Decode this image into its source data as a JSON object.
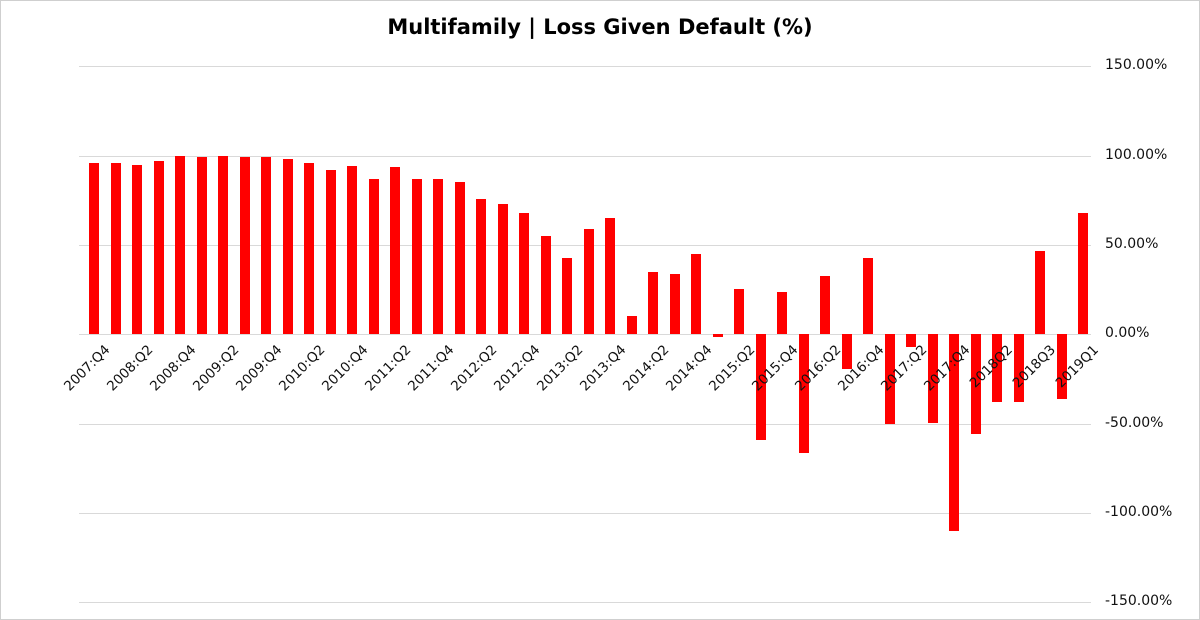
{
  "chart_data": {
    "type": "bar",
    "title": "Multifamily | Loss Given Default (%)",
    "bar_color": "#ff0000",
    "gridline_color": "#d9d9d9",
    "legend": false,
    "grid": true,
    "y_axis_side": "right",
    "ylim": [
      -150,
      150
    ],
    "y_tick_labels": [
      "150.00%",
      "100.00%",
      "50.00%",
      "0.00%",
      "-50.00%",
      "-100.00%",
      "-150.00%"
    ],
    "y_tick_values": [
      150,
      100,
      50,
      0,
      -50,
      -100,
      -150
    ],
    "x_tick_labels": [
      "2007:Q4",
      "2008:Q2",
      "2008:Q4",
      "2009:Q2",
      "2009:Q4",
      "2010:Q2",
      "2010:Q4",
      "2011:Q2",
      "2011:Q4",
      "2012:Q2",
      "2012:Q4",
      "2013:Q2",
      "2013:Q4",
      "2014:Q2",
      "2014:Q4",
      "2015:Q2",
      "2015:Q4",
      "2016:Q2",
      "2016:Q4",
      "2017:Q2",
      "2017:Q4",
      "2018Q2",
      "2018Q3",
      "2019Q1"
    ],
    "x_tick_interval": 2,
    "x_label_rotation_deg": 45,
    "values_unit": "percent",
    "values": [
      96,
      96,
      95,
      97,
      100,
      99,
      100,
      99.5,
      99,
      98,
      96,
      92,
      94,
      87,
      93.5,
      87,
      87,
      85,
      76,
      73,
      68,
      55,
      43,
      59,
      65,
      10,
      35,
      34,
      45,
      -1.5,
      25.5,
      -59,
      23.5,
      -66.5,
      32.5,
      -19.5,
      42.5,
      -50,
      -7,
      -49.5,
      -110,
      -56,
      -38,
      -38,
      46.5,
      -36.5,
      68
    ]
  }
}
